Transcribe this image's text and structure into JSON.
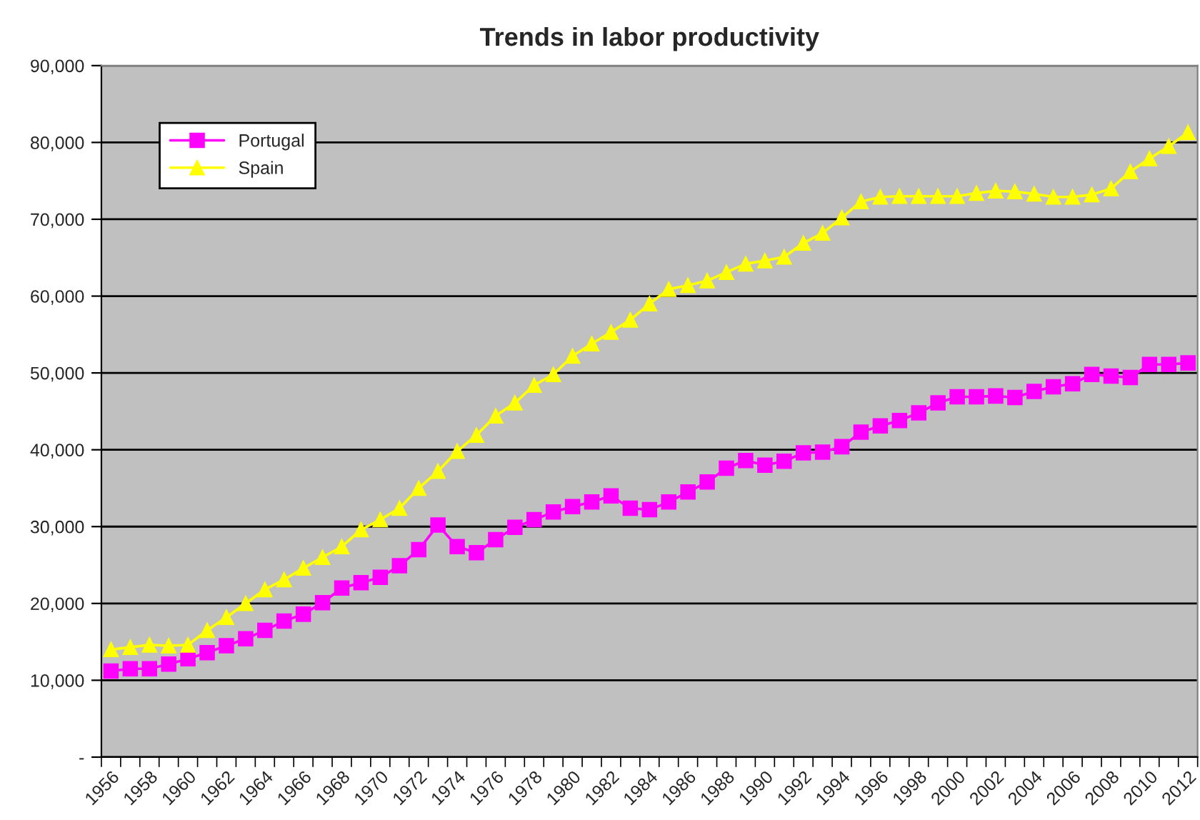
{
  "chart_data": {
    "type": "line",
    "title": "Trends in labor productivity",
    "categories": [
      "1956",
      null,
      "1958",
      null,
      "1960",
      null,
      "1962",
      null,
      "1964",
      null,
      "1966",
      null,
      "1968",
      null,
      "1970",
      null,
      "1972",
      null,
      "1974",
      null,
      "1976",
      null,
      "1978",
      null,
      "1980",
      null,
      "1982",
      null,
      "1984",
      null,
      "1986",
      null,
      "1988",
      null,
      "1990",
      null,
      "1992",
      null,
      "1994",
      null,
      "1996",
      null,
      "1998",
      null,
      "2000",
      null,
      "2002",
      null,
      "2004",
      null,
      "2006",
      null,
      "2008",
      null,
      "2010",
      null,
      "2012"
    ],
    "series": [
      {
        "name": "Portugal",
        "color": "#ff00ff",
        "marker": "square",
        "values": [
          11200,
          11500,
          11500,
          12100,
          12800,
          13600,
          14500,
          15400,
          16500,
          17700,
          18600,
          20100,
          22000,
          22700,
          23400,
          24900,
          27000,
          30200,
          27400,
          26600,
          28300,
          29900,
          30900,
          31900,
          32600,
          33200,
          34000,
          32400,
          32200,
          33200,
          34500,
          35800,
          37600,
          38600,
          38000,
          38500,
          39600,
          39700,
          40400,
          42300,
          43100,
          43800,
          44800,
          46100,
          46900,
          46900,
          47000,
          46800,
          47600,
          48200,
          48600,
          49800,
          49600,
          49400,
          51100,
          51100,
          51300
        ]
      },
      {
        "name": "Spain",
        "color": "#ffff00",
        "marker": "triangle",
        "values": [
          14000,
          14300,
          14600,
          14500,
          14600,
          16500,
          18200,
          20000,
          21800,
          23100,
          24600,
          26000,
          27400,
          29600,
          30900,
          32400,
          35000,
          37200,
          39800,
          41900,
          44400,
          46100,
          48400,
          49800,
          52200,
          53800,
          55300,
          56900,
          59000,
          60900,
          61400,
          62000,
          63100,
          64200,
          64600,
          65100,
          66900,
          68200,
          70200,
          72300,
          72900,
          73000,
          73000,
          73000,
          73000,
          73400,
          73700,
          73600,
          73300,
          72900,
          72900,
          73200,
          74000,
          76200,
          77900,
          79500,
          81300
        ]
      }
    ],
    "ylim": [
      0,
      90000
    ],
    "yticks": [
      {
        "value": 0,
        "label": "-"
      },
      {
        "value": 10000,
        "label": "10,000"
      },
      {
        "value": 20000,
        "label": "20,000"
      },
      {
        "value": 30000,
        "label": "30,000"
      },
      {
        "value": 40000,
        "label": "40,000"
      },
      {
        "value": 50000,
        "label": "50,000"
      },
      {
        "value": 60000,
        "label": "60,000"
      },
      {
        "value": 70000,
        "label": "70,000"
      },
      {
        "value": 80000,
        "label": "80,000"
      },
      {
        "value": 90000,
        "label": "90,000"
      }
    ],
    "grid": "y",
    "legend": "top left",
    "line_style": "solid"
  }
}
